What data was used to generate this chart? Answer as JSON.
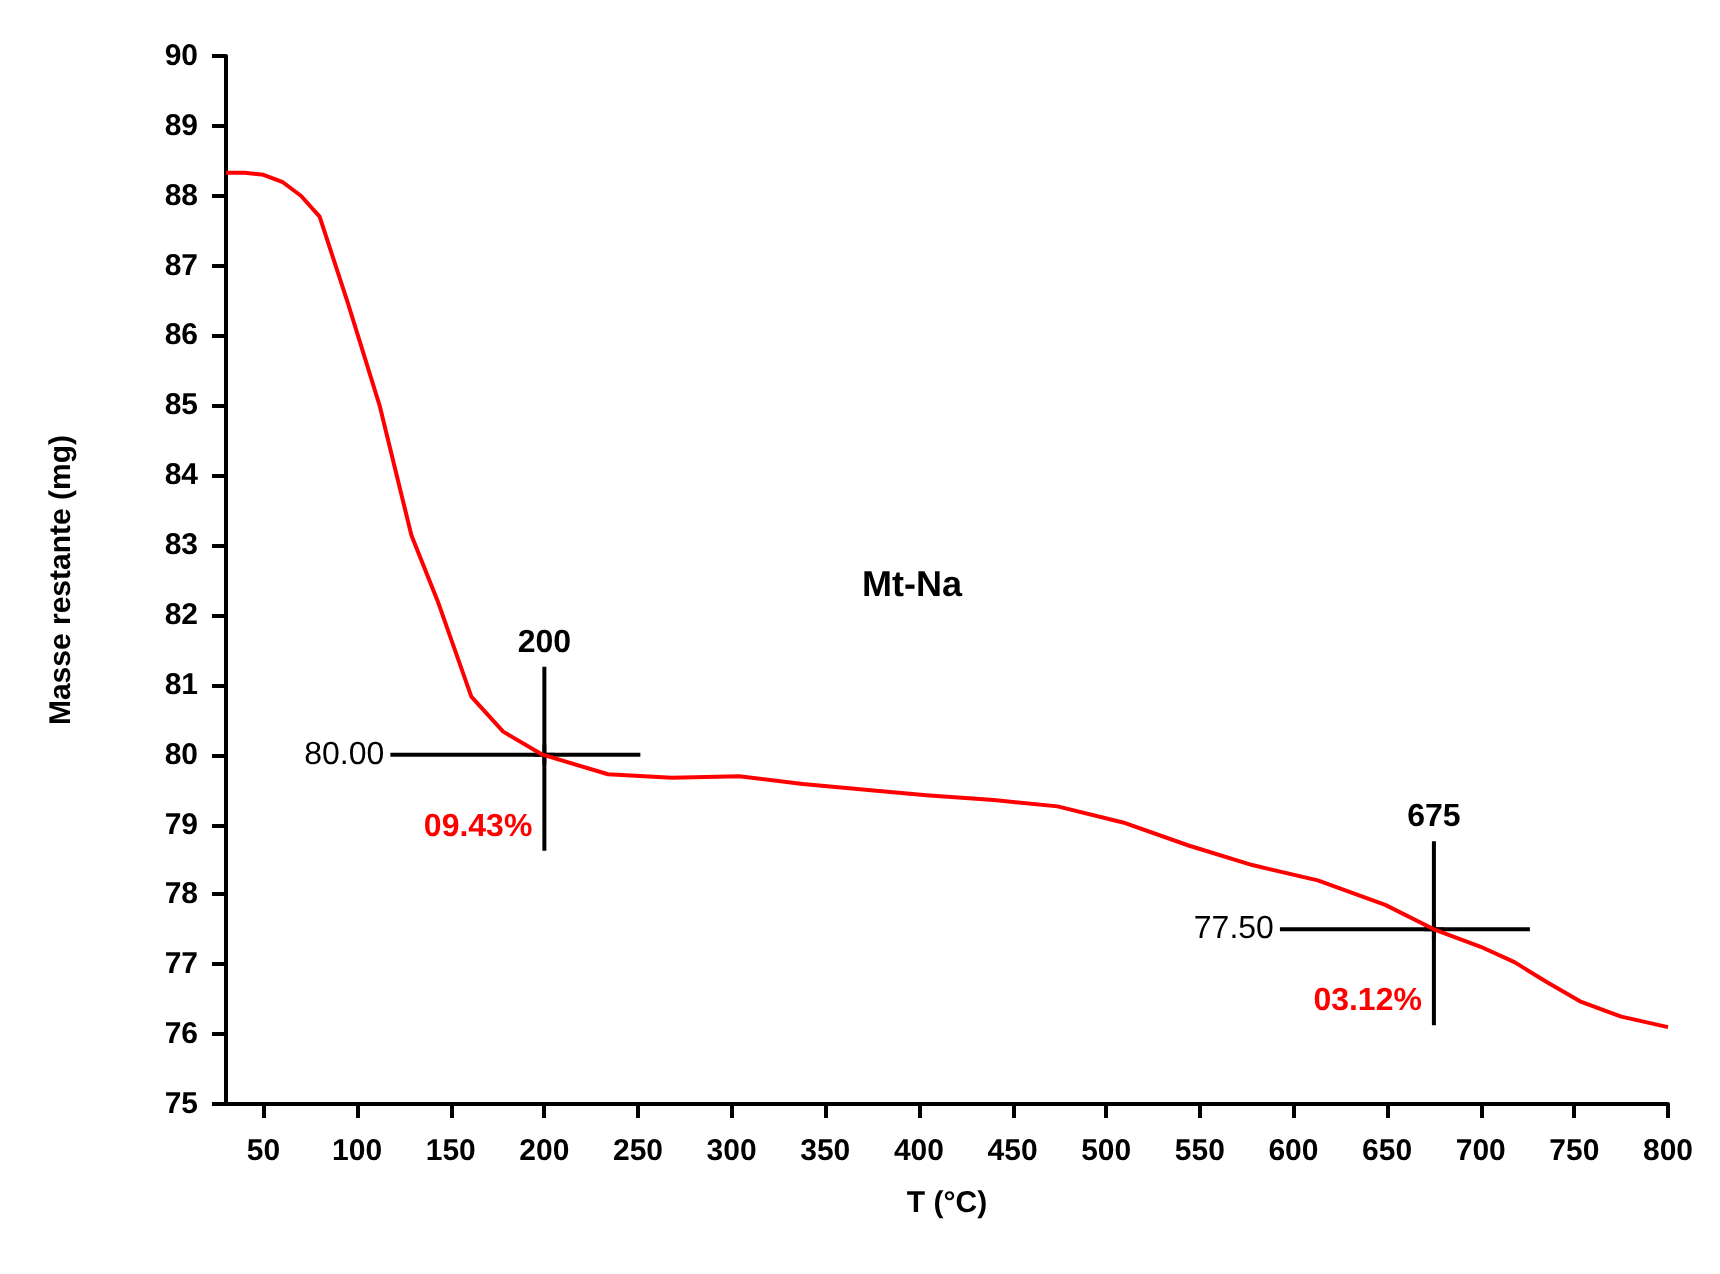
{
  "chart_data": {
    "type": "line",
    "title": "Mt-Na",
    "xlabel": "T (°C)",
    "ylabel": "Masse restante (mg)",
    "x": [
      30,
      40,
      50,
      60,
      70,
      80,
      95,
      112,
      129,
      143,
      161,
      178,
      199,
      234,
      268,
      304,
      338,
      370,
      404,
      440,
      474,
      509,
      544,
      578,
      613,
      649,
      675,
      700,
      718,
      735,
      753,
      775,
      800
    ],
    "series": [
      {
        "type": "scatter",
        "color": "#000000",
        "marker": "cross",
        "x": [
          200,
          675
        ],
        "values": [
          80,
          77.5
        ]
      },
      {
        "color": "#ff0000",
        "values": [
          88.33,
          88.33,
          88.3,
          88.2,
          88.0,
          87.7,
          86.47,
          85.0,
          83.14,
          82.2,
          80.83,
          80.33,
          80.0,
          79.72,
          79.67,
          79.69,
          79.58,
          79.5,
          79.42,
          79.35,
          79.26,
          79.03,
          78.7,
          78.42,
          78.2,
          77.85,
          77.5,
          77.25,
          77.03,
          76.75,
          76.47,
          76.25,
          76.1
        ]
      }
    ],
    "xlim": [
      30,
      800
    ],
    "xticks": [
      50,
      100,
      150,
      200,
      250,
      300,
      350,
      400,
      450,
      500,
      550,
      600,
      650,
      700,
      750,
      800
    ],
    "ylim": [
      75,
      90
    ],
    "yticks": [
      75,
      76,
      77,
      78,
      79,
      80,
      81,
      82,
      83,
      84,
      85,
      86,
      87,
      88,
      89,
      90
    ],
    "grid": false,
    "marker": "none",
    "line_style": "solid",
    "annotations": [
      "200",
      "80.00",
      "09.43%",
      "675",
      "77.50",
      "03.12%"
    ]
  }
}
